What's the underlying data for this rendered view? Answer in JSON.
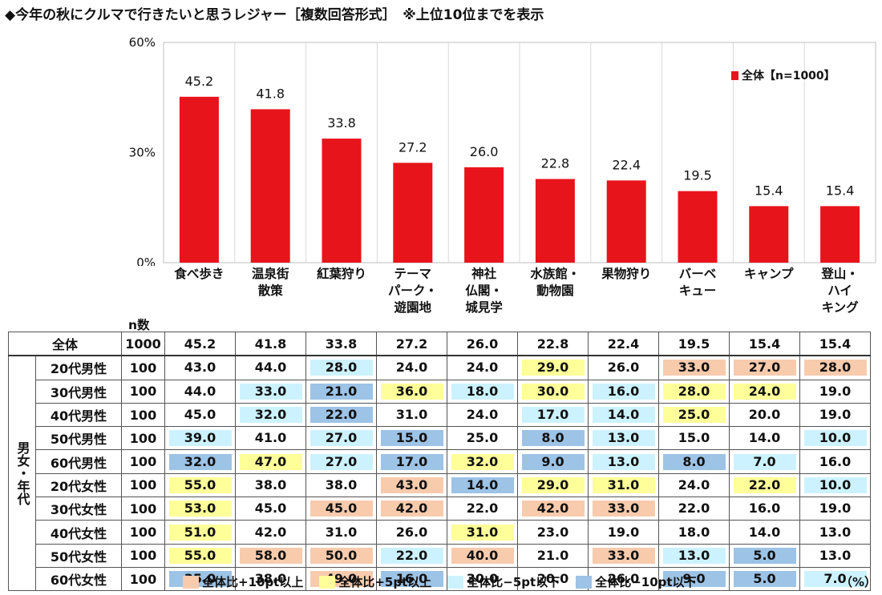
{
  "title": "◆今年の秋にクルマで行きたいと思うレジャー［複数回答形式］　※上位10位までを表示",
  "legend_label": "全体【n=1000】",
  "n_label": "n数",
  "unit_label": "（%）",
  "footer_legend": [
    {
      "label": "全体比+10pt以上",
      "color": "#f8cbad"
    },
    {
      "label": "全体比+5pt以上",
      "color": "#ffff99"
    },
    {
      "label": "全体比−5pt以下",
      "color": "#ccf2ff"
    },
    {
      "label": "全体比−10pt以下",
      "color": "#9dc3e6"
    }
  ],
  "chart_data": {
    "type": "bar",
    "categories": [
      "食べ歩き",
      "温泉街\n散策",
      "紅葉狩り",
      "テーマ\nパーク・\n遊園地",
      "神社\n仏閣・\n城見学",
      "水族館・\n動物園",
      "果物狩り",
      "バーベ\nキュー",
      "キャンプ",
      "登山・\nハイ\nキング"
    ],
    "series": [
      {
        "name": "全体【n=1000】",
        "values": [
          45.2,
          41.8,
          33.8,
          27.2,
          26.0,
          22.8,
          22.4,
          19.5,
          15.4,
          15.4
        ]
      }
    ],
    "value_labels": [
      "45.2",
      "41.8",
      "33.8",
      "27.2",
      "26.0",
      "22.8",
      "22.4",
      "19.5",
      "15.4",
      "15.4"
    ],
    "ylim": [
      0,
      60
    ],
    "yticks": [
      0,
      30,
      60
    ],
    "ytick_labels": [
      "0%",
      "30%",
      "60%"
    ],
    "bar_color": "#e8141b",
    "legend_position": "top-right"
  },
  "table": {
    "total_row": {
      "label": "全体",
      "n": "1000",
      "values": [
        "45.2",
        "41.8",
        "33.8",
        "27.2",
        "26.0",
        "22.8",
        "22.4",
        "19.5",
        "15.4",
        "15.4"
      ]
    },
    "group_label": "男女・年代",
    "rows": [
      {
        "label": "20代男性",
        "n": "100",
        "values": [
          "43.0",
          "44.0",
          "28.0",
          "24.0",
          "24.0",
          "29.0",
          "26.0",
          "33.0",
          "27.0",
          "28.0"
        ]
      },
      {
        "label": "30代男性",
        "n": "100",
        "values": [
          "44.0",
          "33.0",
          "21.0",
          "36.0",
          "18.0",
          "30.0",
          "16.0",
          "28.0",
          "24.0",
          "19.0"
        ]
      },
      {
        "label": "40代男性",
        "n": "100",
        "values": [
          "45.0",
          "32.0",
          "22.0",
          "31.0",
          "24.0",
          "17.0",
          "14.0",
          "25.0",
          "20.0",
          "19.0"
        ]
      },
      {
        "label": "50代男性",
        "n": "100",
        "values": [
          "39.0",
          "41.0",
          "27.0",
          "15.0",
          "25.0",
          "8.0",
          "13.0",
          "15.0",
          "14.0",
          "10.0"
        ]
      },
      {
        "label": "60代男性",
        "n": "100",
        "values": [
          "32.0",
          "47.0",
          "27.0",
          "17.0",
          "32.0",
          "9.0",
          "13.0",
          "8.0",
          "7.0",
          "16.0"
        ]
      },
      {
        "label": "20代女性",
        "n": "100",
        "values": [
          "55.0",
          "38.0",
          "38.0",
          "43.0",
          "14.0",
          "29.0",
          "31.0",
          "24.0",
          "22.0",
          "10.0"
        ]
      },
      {
        "label": "30代女性",
        "n": "100",
        "values": [
          "53.0",
          "45.0",
          "45.0",
          "42.0",
          "22.0",
          "42.0",
          "33.0",
          "22.0",
          "16.0",
          "19.0"
        ]
      },
      {
        "label": "40代女性",
        "n": "100",
        "values": [
          "51.0",
          "42.0",
          "31.0",
          "26.0",
          "31.0",
          "23.0",
          "19.0",
          "18.0",
          "14.0",
          "13.0"
        ]
      },
      {
        "label": "50代女性",
        "n": "100",
        "values": [
          "55.0",
          "58.0",
          "50.0",
          "22.0",
          "40.0",
          "21.0",
          "33.0",
          "13.0",
          "5.0",
          "13.0"
        ]
      },
      {
        "label": "60代女性",
        "n": "100",
        "values": [
          "35.0",
          "38.0",
          "49.0",
          "16.0",
          "30.0",
          "20.0",
          "26.0",
          "9.0",
          "5.0",
          "7.0"
        ]
      }
    ]
  }
}
